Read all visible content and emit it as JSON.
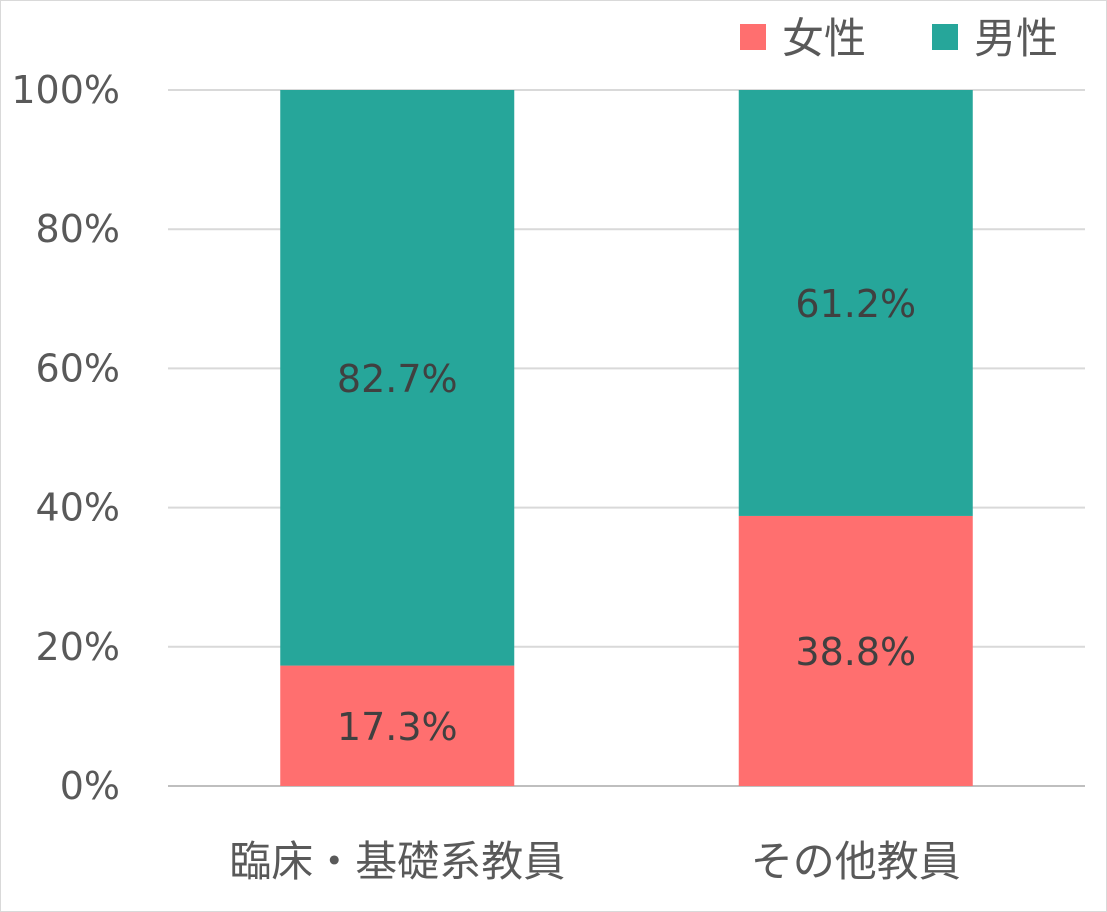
{
  "chart_data": {
    "type": "bar",
    "stacked": true,
    "categories": [
      "臨床・基礎系教員",
      "その他教員"
    ],
    "series": [
      {
        "name": "女性",
        "values": [
          17.3,
          38.8
        ],
        "labels": [
          "17.3%",
          "38.8%"
        ],
        "color": "#ff6f6f"
      },
      {
        "name": "男性",
        "values": [
          82.7,
          61.2
        ],
        "labels": [
          "82.7%",
          "61.2%"
        ],
        "color": "#26a69a"
      }
    ],
    "ylim": [
      0,
      100
    ],
    "yticks": [
      "0%",
      "20%",
      "40%",
      "60%",
      "80%",
      "100%"
    ],
    "grid": true,
    "legend": "top-right"
  }
}
